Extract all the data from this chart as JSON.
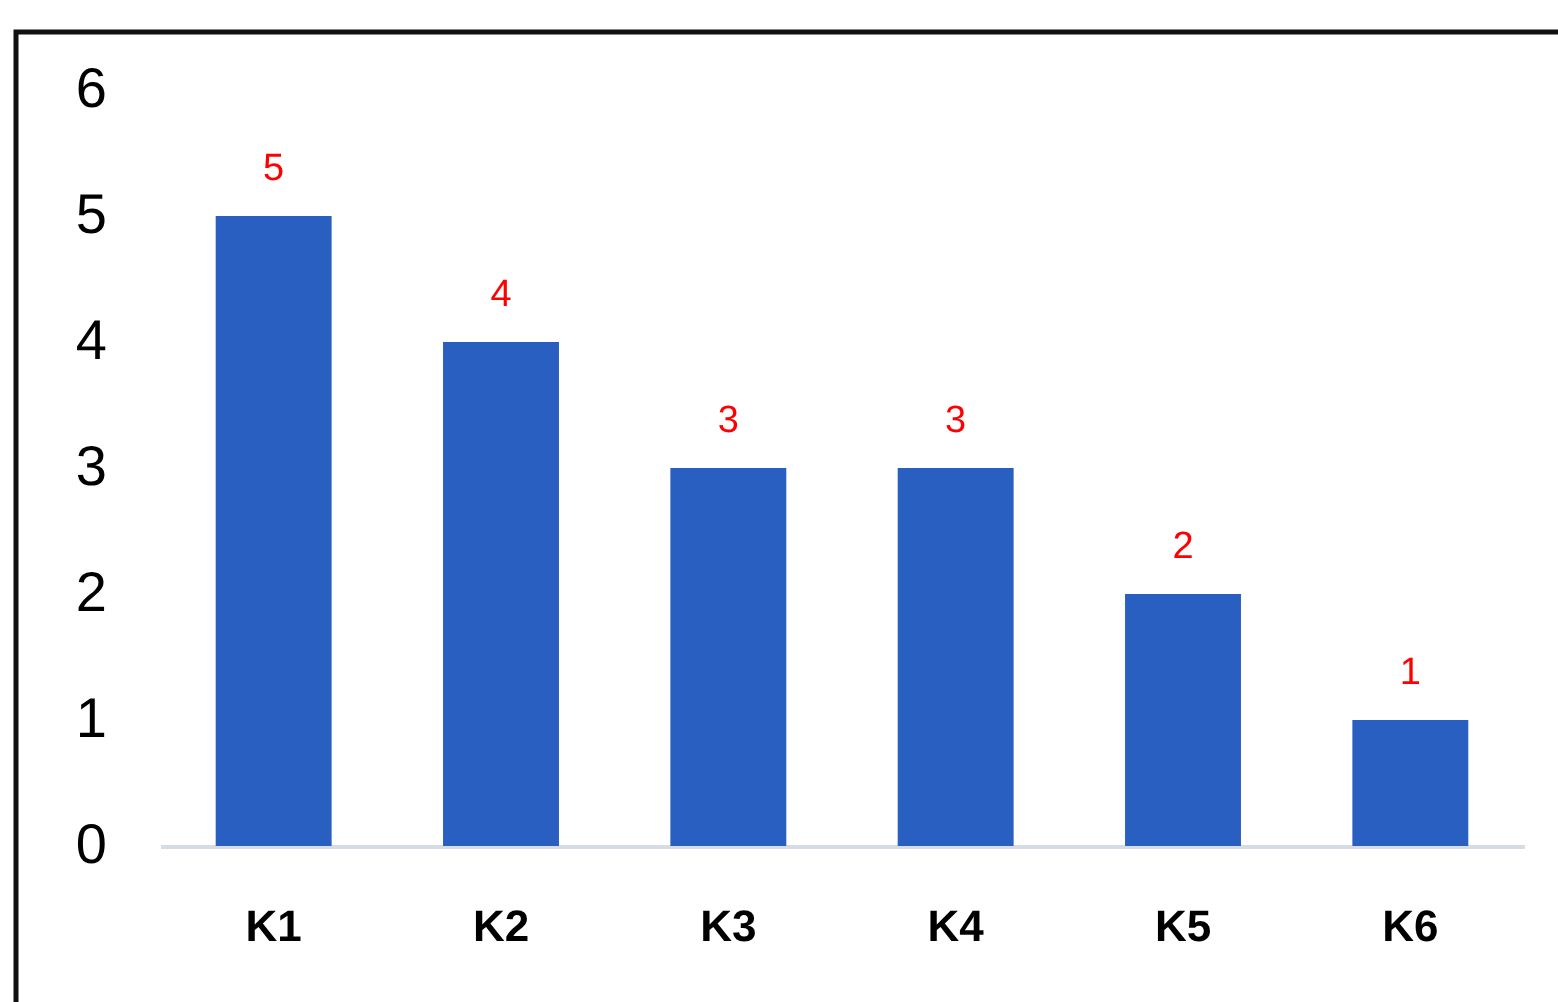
{
  "chart_data": {
    "type": "bar",
    "categories": [
      "K1",
      "K2",
      "K3",
      "K4",
      "K5",
      "K6"
    ],
    "values": [
      5,
      4,
      3,
      3,
      2,
      1
    ],
    "color": "#2a5fc2",
    "ylim": [
      0,
      6
    ],
    "yticks": [
      0,
      1,
      2,
      3,
      4,
      5,
      6
    ],
    "data_labels": true
  }
}
